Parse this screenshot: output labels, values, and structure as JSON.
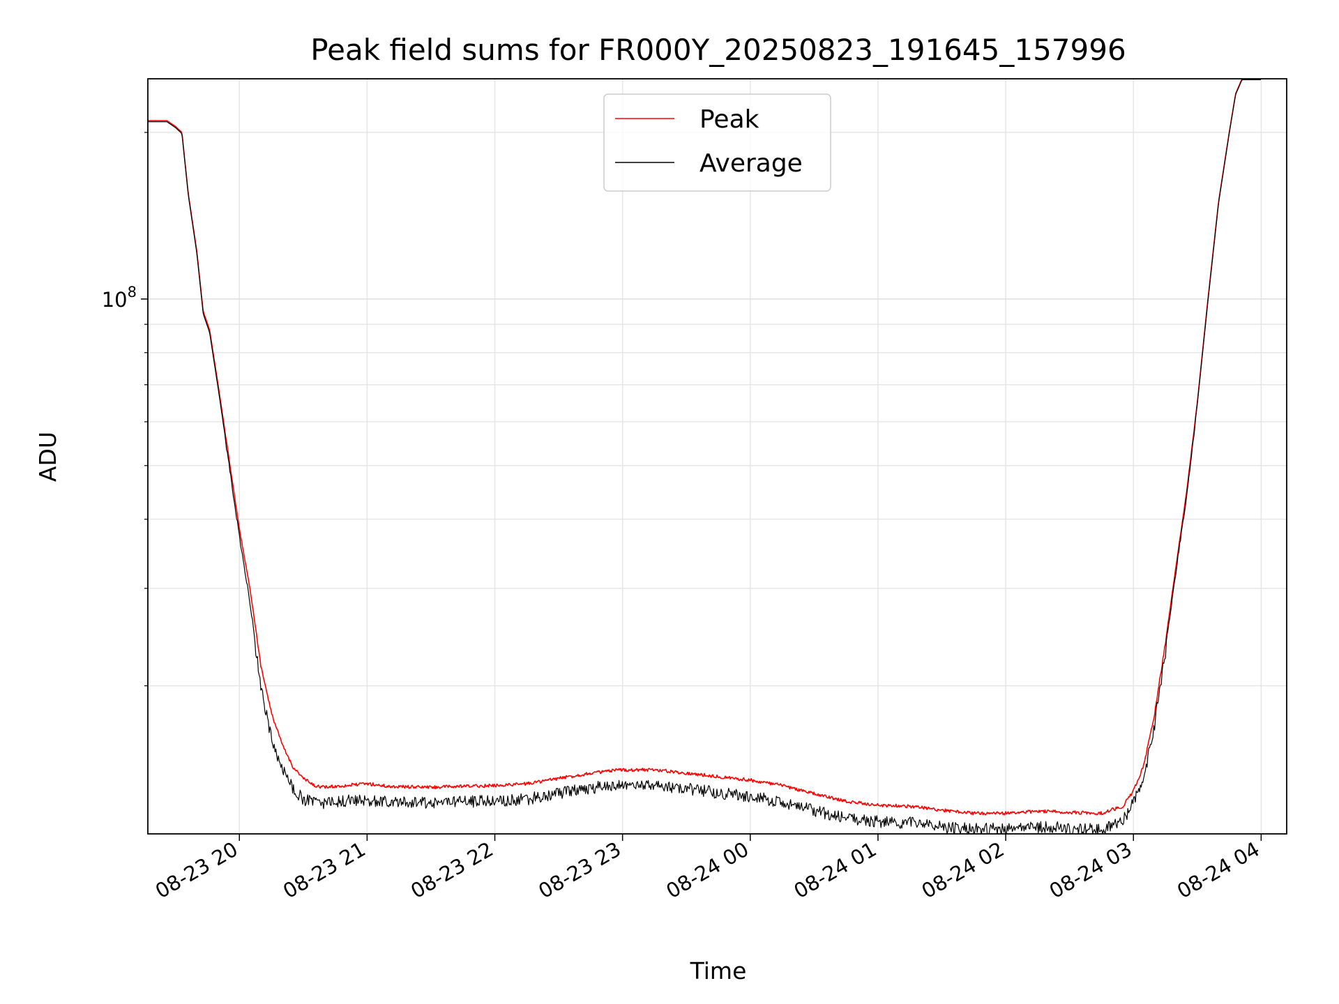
{
  "chart_data": {
    "type": "line",
    "title": "Peak field sums for FR000Y_20250823_191645_157996",
    "xlabel": "Time",
    "ylabel": "ADU",
    "yscale": "log",
    "x_range": [
      "2025-08-23 19:17",
      "2025-08-24 04:12"
    ],
    "ylim": [
      10800000,
      250000000
    ],
    "x_ticks": [
      {
        "t": "2025-08-23 20:00",
        "label": "08-23 20"
      },
      {
        "t": "2025-08-23 21:00",
        "label": "08-23 21"
      },
      {
        "t": "2025-08-23 22:00",
        "label": "08-23 22"
      },
      {
        "t": "2025-08-23 23:00",
        "label": "08-23 23"
      },
      {
        "t": "2025-08-24 00:00",
        "label": "08-24 00"
      },
      {
        "t": "2025-08-24 01:00",
        "label": "08-24 01"
      },
      {
        "t": "2025-08-24 02:00",
        "label": "08-24 02"
      },
      {
        "t": "2025-08-24 03:00",
        "label": "08-24 03"
      },
      {
        "t": "2025-08-24 04:00",
        "label": "08-24 04"
      }
    ],
    "y_major_ticks": [
      {
        "value": 100000000,
        "base": "10",
        "exp": "8"
      }
    ],
    "y_minor_ticks": [
      20000000,
      30000000,
      40000000,
      50000000,
      60000000,
      70000000,
      80000000,
      90000000,
      200000000
    ],
    "grid": true,
    "legend": {
      "position": "upper center",
      "entries": [
        {
          "label": "Peak",
          "color": "#ff0000"
        },
        {
          "label": "Average",
          "color": "#000000"
        }
      ]
    },
    "series": [
      {
        "name": "Peak",
        "color": "#ff0000",
        "points": [
          [
            "2025-08-23 19:17",
            210000000
          ],
          [
            "2025-08-23 19:26",
            210000000
          ],
          [
            "2025-08-23 19:30",
            205000000
          ],
          [
            "2025-08-23 19:33",
            200000000
          ],
          [
            "2025-08-23 19:36",
            155000000
          ],
          [
            "2025-08-23 19:40",
            122000000
          ],
          [
            "2025-08-23 19:43",
            95000000
          ],
          [
            "2025-08-23 19:46",
            88000000
          ],
          [
            "2025-08-23 19:50",
            70000000
          ],
          [
            "2025-08-23 19:55",
            52000000
          ],
          [
            "2025-08-23 20:00",
            38500000
          ],
          [
            "2025-08-23 20:05",
            30000000
          ],
          [
            "2025-08-23 20:10",
            22000000
          ],
          [
            "2025-08-23 20:15",
            18000000
          ],
          [
            "2025-08-23 20:20",
            15800000
          ],
          [
            "2025-08-23 20:25",
            14400000
          ],
          [
            "2025-08-23 20:30",
            13700000
          ],
          [
            "2025-08-23 20:35",
            13300000
          ],
          [
            "2025-08-23 20:40",
            13200000
          ],
          [
            "2025-08-23 20:50",
            13300000
          ],
          [
            "2025-08-23 21:00",
            13400000
          ],
          [
            "2025-08-23 21:10",
            13250000
          ],
          [
            "2025-08-23 21:30",
            13200000
          ],
          [
            "2025-08-23 21:45",
            13250000
          ],
          [
            "2025-08-23 22:00",
            13300000
          ],
          [
            "2025-08-23 22:15",
            13400000
          ],
          [
            "2025-08-23 22:30",
            13700000
          ],
          [
            "2025-08-23 22:45",
            14000000
          ],
          [
            "2025-08-23 23:00",
            14200000
          ],
          [
            "2025-08-23 23:15",
            14200000
          ],
          [
            "2025-08-23 23:30",
            14000000
          ],
          [
            "2025-08-23 23:45",
            13800000
          ],
          [
            "2025-08-24 00:00",
            13600000
          ],
          [
            "2025-08-24 00:15",
            13300000
          ],
          [
            "2025-08-24 00:30",
            12850000
          ],
          [
            "2025-08-24 00:45",
            12450000
          ],
          [
            "2025-08-24 01:00",
            12250000
          ],
          [
            "2025-08-24 01:15",
            12200000
          ],
          [
            "2025-08-24 01:30",
            12000000
          ],
          [
            "2025-08-24 01:45",
            11850000
          ],
          [
            "2025-08-24 02:00",
            11850000
          ],
          [
            "2025-08-24 02:15",
            11950000
          ],
          [
            "2025-08-24 02:30",
            11900000
          ],
          [
            "2025-08-24 02:45",
            11850000
          ],
          [
            "2025-08-24 02:55",
            12200000
          ],
          [
            "2025-08-24 03:00",
            13000000
          ],
          [
            "2025-08-24 03:05",
            14500000
          ],
          [
            "2025-08-24 03:10",
            18000000
          ],
          [
            "2025-08-24 03:15",
            24000000
          ],
          [
            "2025-08-24 03:20",
            33000000
          ],
          [
            "2025-08-24 03:25",
            45000000
          ],
          [
            "2025-08-24 03:30",
            65000000
          ],
          [
            "2025-08-24 03:35",
            100000000
          ],
          [
            "2025-08-24 03:40",
            150000000
          ],
          [
            "2025-08-24 03:45",
            200000000
          ],
          [
            "2025-08-24 03:48",
            235000000
          ],
          [
            "2025-08-24 03:51",
            250000000
          ],
          [
            "2025-08-24 04:00",
            250000000
          ]
        ]
      },
      {
        "name": "Average",
        "color": "#000000",
        "points": [
          [
            "2025-08-23 19:17",
            209000000
          ],
          [
            "2025-08-23 19:26",
            209000000
          ],
          [
            "2025-08-23 19:30",
            204000000
          ],
          [
            "2025-08-23 19:33",
            199000000
          ],
          [
            "2025-08-23 19:36",
            154000000
          ],
          [
            "2025-08-23 19:40",
            121000000
          ],
          [
            "2025-08-23 19:43",
            94000000
          ],
          [
            "2025-08-23 19:46",
            87000000
          ],
          [
            "2025-08-23 19:50",
            69000000
          ],
          [
            "2025-08-23 19:55",
            51000000
          ],
          [
            "2025-08-23 20:00",
            37500000
          ],
          [
            "2025-08-23 20:05",
            28500000
          ],
          [
            "2025-08-23 20:10",
            20500000
          ],
          [
            "2025-08-23 20:15",
            16500000
          ],
          [
            "2025-08-23 20:20",
            14600000
          ],
          [
            "2025-08-23 20:25",
            13400000
          ],
          [
            "2025-08-23 20:30",
            12800000
          ],
          [
            "2025-08-23 20:35",
            12600000
          ],
          [
            "2025-08-23 20:40",
            12600000
          ],
          [
            "2025-08-23 20:50",
            12700000
          ],
          [
            "2025-08-23 21:00",
            12750000
          ],
          [
            "2025-08-23 21:10",
            12650000
          ],
          [
            "2025-08-23 21:30",
            12600000
          ],
          [
            "2025-08-23 21:45",
            12650000
          ],
          [
            "2025-08-23 22:00",
            12700000
          ],
          [
            "2025-08-23 22:15",
            12800000
          ],
          [
            "2025-08-23 22:30",
            13100000
          ],
          [
            "2025-08-23 22:45",
            13400000
          ],
          [
            "2025-08-23 23:00",
            13600000
          ],
          [
            "2025-08-23 23:15",
            13550000
          ],
          [
            "2025-08-23 23:30",
            13350000
          ],
          [
            "2025-08-23 23:45",
            13150000
          ],
          [
            "2025-08-24 00:00",
            12950000
          ],
          [
            "2025-08-24 00:15",
            12650000
          ],
          [
            "2025-08-24 00:30",
            12200000
          ],
          [
            "2025-08-24 00:45",
            11850000
          ],
          [
            "2025-08-24 01:00",
            11650000
          ],
          [
            "2025-08-24 01:15",
            11600000
          ],
          [
            "2025-08-24 01:30",
            11400000
          ],
          [
            "2025-08-24 01:45",
            11300000
          ],
          [
            "2025-08-24 02:00",
            11300000
          ],
          [
            "2025-08-24 02:15",
            11400000
          ],
          [
            "2025-08-24 02:30",
            11350000
          ],
          [
            "2025-08-24 02:45",
            11300000
          ],
          [
            "2025-08-24 02:55",
            11700000
          ],
          [
            "2025-08-24 03:00",
            12600000
          ],
          [
            "2025-08-24 03:05",
            14000000
          ],
          [
            "2025-08-24 03:10",
            17500000
          ],
          [
            "2025-08-24 03:15",
            23500000
          ],
          [
            "2025-08-24 03:20",
            32500000
          ],
          [
            "2025-08-24 03:25",
            44500000
          ],
          [
            "2025-08-24 03:30",
            64500000
          ],
          [
            "2025-08-24 03:35",
            99000000
          ],
          [
            "2025-08-24 03:40",
            149000000
          ],
          [
            "2025-08-24 03:45",
            199000000
          ],
          [
            "2025-08-24 03:48",
            234000000
          ],
          [
            "2025-08-24 03:51",
            249000000
          ],
          [
            "2025-08-24 04:00",
            249000000
          ]
        ]
      }
    ]
  }
}
